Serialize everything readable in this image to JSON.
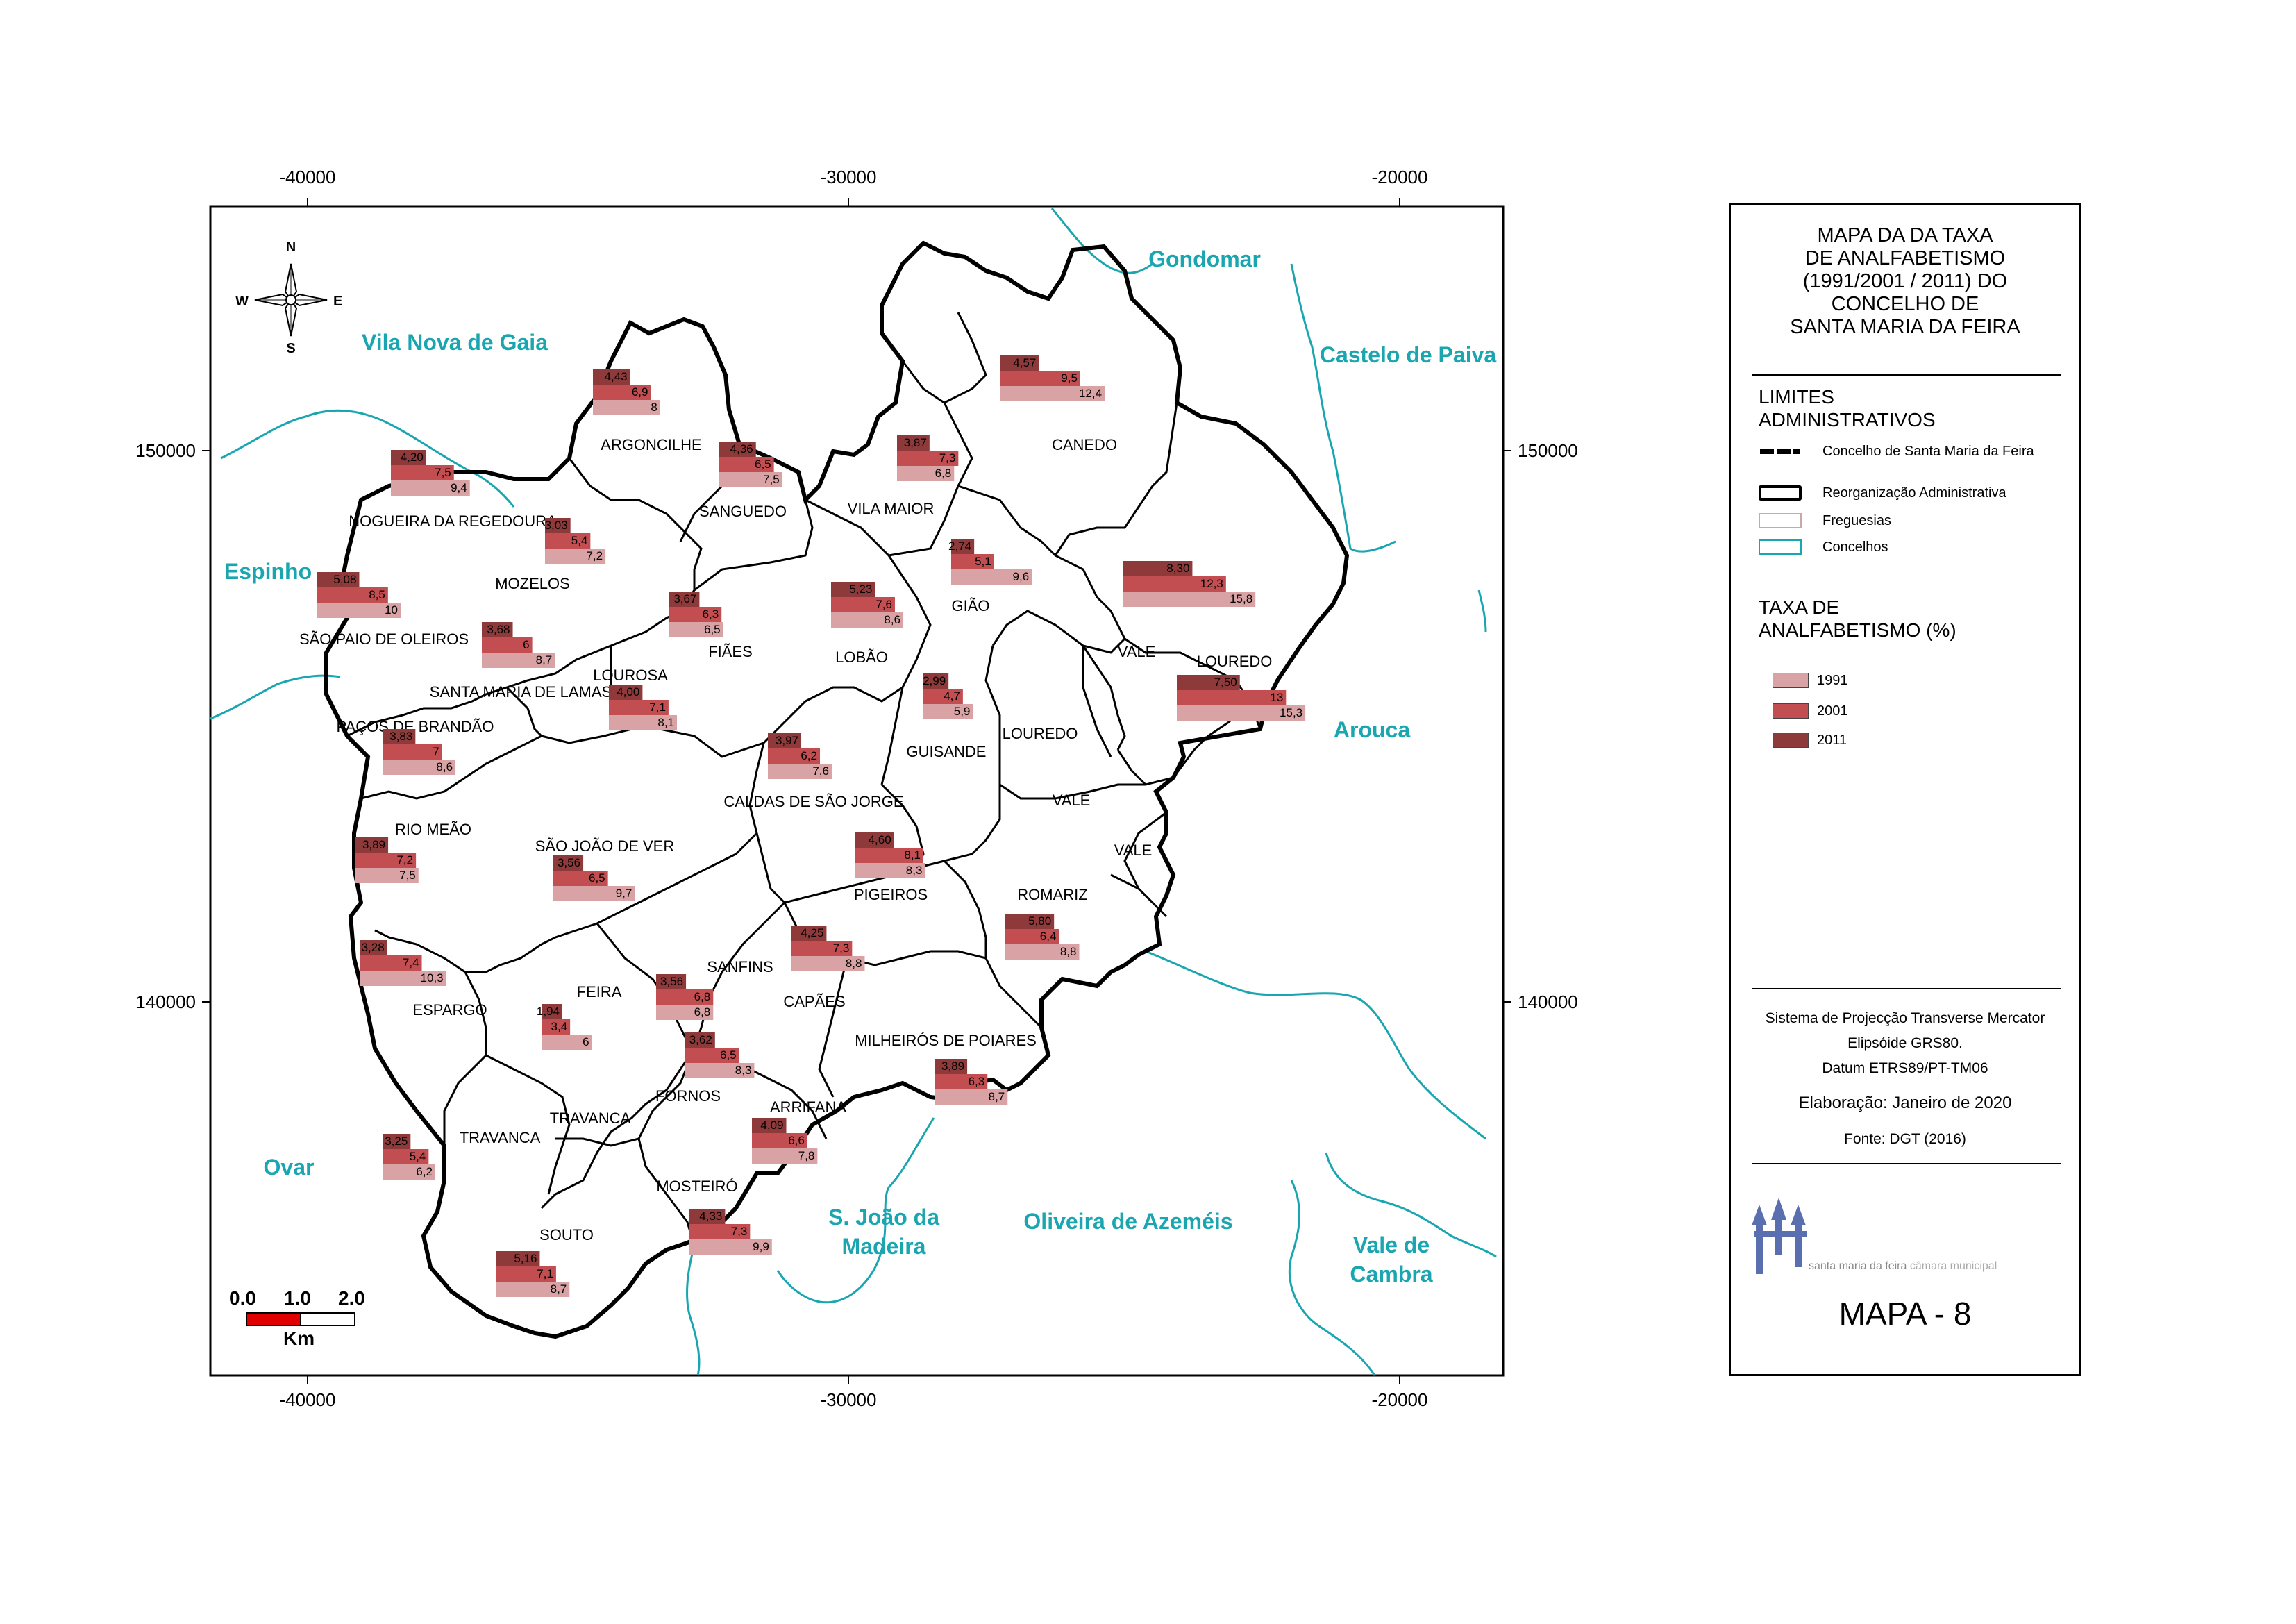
{
  "legend": {
    "title": "MAPA DA DA TAXA\nDE ANALFABETISMO\n(1991/2001 / 2011) DO\nCONCELHO DE\nSANTA MARIA DA FEIRA",
    "limits_heading": "LIMITES\nADMINISTRATIVOS",
    "limits": [
      {
        "label": "Concelho de Santa Maria da Feira",
        "style": "dashed-thick",
        "color": "#000000"
      },
      {
        "label": "Reorganização Administrativa",
        "style": "box-thick",
        "color": "#000000"
      },
      {
        "label": "Freguesias",
        "style": "box-thin",
        "color": "#c8a8a8"
      },
      {
        "label": "Concelhos",
        "style": "box-cyan",
        "color": "#1aa6b0"
      }
    ],
    "rate_heading": "TAXA DE\nANALFABETISMO (%)",
    "years": [
      {
        "label": "1991",
        "color": "#d9a2a4"
      },
      {
        "label": "2001",
        "color": "#c24e52"
      },
      {
        "label": "2011",
        "color": "#8e3a3a"
      }
    ],
    "projection": "Sistema de Projecção Transverse  Mercator",
    "ellipsoid": "Elipsóide GRS80.",
    "datum": "Datum ETRS89/PT-TM06",
    "elaboration": "Elaboração: Janeiro de 2020",
    "source": "Fonte: DGT (2016)",
    "logo_text": "santa maria da feira",
    "logo_sub": "câmara municipal",
    "map_number": "MAPA - 8"
  },
  "axes": {
    "x_ticks": [
      "-40000",
      "-30000",
      "-20000"
    ],
    "y_ticks": [
      "150000",
      "140000"
    ]
  },
  "compass": {
    "n": "N",
    "s": "S",
    "e": "E",
    "w": "W"
  },
  "scale_bar": {
    "labels": [
      "0.0",
      "1.0",
      "2.0"
    ],
    "unit": "Km"
  },
  "municipalities": [
    "Gondomar",
    "Vila Nova de Gaia",
    "Castelo de Paiva",
    "Espinho",
    "Arouca",
    "Ovar",
    "S. João da",
    "Madeira",
    "Oliveira de Azeméis",
    "Vale de",
    "Cambra"
  ],
  "parishes": [
    "ARGONCILHE",
    "CANEDO",
    "NOGUEIRA DA REGEDOURA",
    "SANGUEDO",
    "VILA MAIOR",
    "MOZELOS",
    "GIÃO",
    "SÃO PAIO DE OLEIROS",
    "FIÃES",
    "LOBÃO",
    "VALE",
    "LOUREDO",
    "SANTA MARIA DE LAMAS",
    "LOUROSA",
    "PAÇOS DE BRANDÃO",
    "LOUREDO",
    "GUISANDE",
    "CALDAS DE SÃO JORGE",
    "VALE",
    "VALE",
    "RIO MEÃO",
    "SÃO JOÃO DE VER",
    "PIGEIROS",
    "ROMARIZ",
    "SANFINS",
    "FEIRA",
    "CAPÃES",
    "ESPARGO",
    "MILHEIRÓS DE POIARES",
    "FORNOS",
    "TRAVANCA",
    "TRAVANCA",
    "ARRIFANA",
    "MOSTEIRÓ",
    "SOUTO"
  ],
  "bar_groups": [
    {
      "parish": "ARGONCILHE",
      "v2011": "4,43",
      "v2001": "6,9",
      "v1991": "8"
    },
    {
      "parish": "CANEDO",
      "v2011": "4,57",
      "v2001": "9,5",
      "v1991": "12,4"
    },
    {
      "parish": "NOGUEIRA DA REGEDOURA",
      "v2011": "4,20",
      "v2001": "7,5",
      "v1991": "9,4"
    },
    {
      "parish": "SANGUEDO",
      "v2011": "4,36",
      "v2001": "6,5",
      "v1991": "7,5"
    },
    {
      "parish": "VILA MAIOR",
      "v2011": "3,87",
      "v2001": "7,3",
      "v1991": "6,8"
    },
    {
      "parish": "MOZELOS",
      "v2011": "3,03",
      "v2001": "5,4",
      "v1991": "7,2"
    },
    {
      "parish": "GIÃO",
      "v2011": "2,74",
      "v2001": "5,1",
      "v1991": "9,6"
    },
    {
      "parish": "SÃO PAIO DE OLEIROS",
      "v2011": "5,08",
      "v2001": "8,5",
      "v1991": "10"
    },
    {
      "parish": "VALE",
      "v2011": "8,30",
      "v2001": "12,3",
      "v1991": "15,8"
    },
    {
      "parish": "FIÃES",
      "v2011": "3,67",
      "v2001": "6,3",
      "v1991": "6,5"
    },
    {
      "parish": "LOBÃO",
      "v2011": "5,23",
      "v2001": "7,6",
      "v1991": "8,6"
    },
    {
      "parish": "SANTA MARIA DE LAMAS",
      "v2011": "3,68",
      "v2001": "6",
      "v1991": "8,7"
    },
    {
      "parish": "LOUREDO",
      "v2011": "7,50",
      "v2001": "13",
      "v1991": "15,3"
    },
    {
      "parish": "LOUREDO",
      "v2011": "2,99",
      "v2001": "4,7",
      "v1991": "5,9"
    },
    {
      "parish": "LOUROSA",
      "v2011": "4,00",
      "v2001": "7,1",
      "v1991": "8,1"
    },
    {
      "parish": "PAÇOS DE BRANDÃO",
      "v2011": "3,83",
      "v2001": "7",
      "v1991": "8,6"
    },
    {
      "parish": "CALDAS DE SÃO JORGE",
      "v2011": "3,97",
      "v2001": "6,2",
      "v1991": "7,6"
    },
    {
      "parish": "RIO MEÃO",
      "v2011": "3,89",
      "v2001": "7,2",
      "v1991": "7,5"
    },
    {
      "parish": "PIGEIROS",
      "v2011": "4,60",
      "v2001": "8,1",
      "v1991": "8,3"
    },
    {
      "parish": "SÃO JOÃO DE VER",
      "v2011": "3,56",
      "v2001": "6,5",
      "v1991": "9,7"
    },
    {
      "parish": "ROMARIZ",
      "v2011": "5,80",
      "v2001": "6,4",
      "v1991": "8,8"
    },
    {
      "parish": "SANFINS",
      "v2011": "4,25",
      "v2001": "7,3",
      "v1991": "8,8"
    },
    {
      "parish": "ESPARGO",
      "v2011": "3,28",
      "v2001": "7,4",
      "v1991": "10,3"
    },
    {
      "parish": "CAPÃES",
      "v2011": "3,56",
      "v2001": "6,8",
      "v1991": "6,8"
    },
    {
      "parish": "FEIRA",
      "v2011": "1,94",
      "v2001": "3,4",
      "v1991": "6"
    },
    {
      "parish": "FORNOS",
      "v2011": "3,62",
      "v2001": "6,5",
      "v1991": "8,3"
    },
    {
      "parish": "MILHEIRÓS DE POIARES",
      "v2011": "3,89",
      "v2001": "6,3",
      "v1991": "8,7"
    },
    {
      "parish": "ARRIFANA",
      "v2011": "4,09",
      "v2001": "6,6",
      "v1991": "7,8"
    },
    {
      "parish": "TRAVANCA",
      "v2011": "3,25",
      "v2001": "5,4",
      "v1991": "6,2"
    },
    {
      "parish": "MOSTEIRÓ",
      "v2011": "4,33",
      "v2001": "7,3",
      "v1991": "9,9"
    },
    {
      "parish": "SOUTO",
      "v2011": "5,16",
      "v2001": "7,1",
      "v1991": "8,7"
    }
  ]
}
